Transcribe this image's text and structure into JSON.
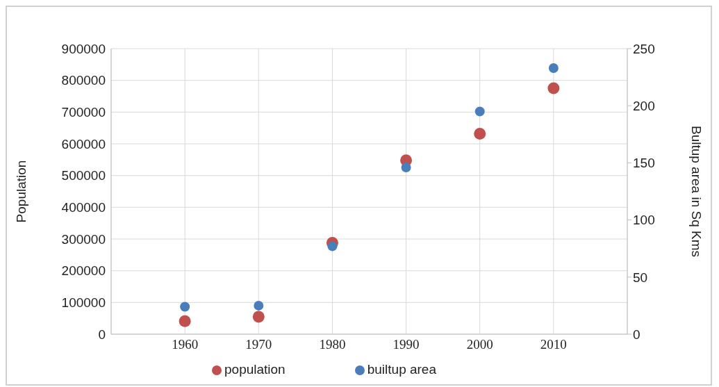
{
  "chart_data": {
    "type": "scatter",
    "ylabel": "Population",
    "y2label": "Bultup area in Sq Kms",
    "x": [
      1960,
      1970,
      1980,
      1990,
      2000,
      2010
    ],
    "xlim": [
      1950,
      2020
    ],
    "xticks": [
      1960,
      1970,
      1980,
      1990,
      2000,
      2010
    ],
    "ylim": [
      0,
      900000
    ],
    "yticks": [
      0,
      100000,
      200000,
      300000,
      400000,
      500000,
      600000,
      700000,
      800000,
      900000
    ],
    "y2lim": [
      0,
      250
    ],
    "y2ticks": [
      0,
      50,
      100,
      150,
      200,
      250
    ],
    "series": [
      {
        "name": "population",
        "color": "#c0504d",
        "values": [
          41000,
          55000,
          288000,
          548000,
          632000,
          775000
        ]
      },
      {
        "name": "builtup area",
        "color": "#4a7ebb",
        "axis": "y2",
        "values": [
          24,
          25,
          77,
          146,
          195,
          233
        ]
      }
    ],
    "grid": true,
    "legend": "bottom",
    "marker": "circle"
  }
}
